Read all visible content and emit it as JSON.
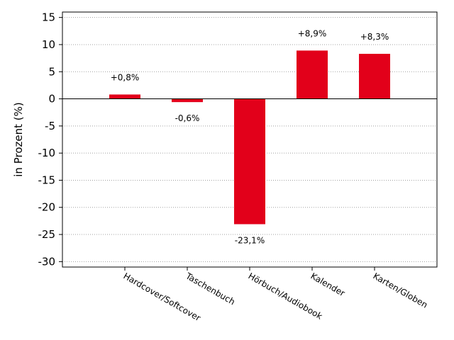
{
  "chart_data": {
    "type": "bar",
    "categories": [
      "Hardcover/Softcover",
      "Taschenbuch",
      "Hörbuch/Audiobook",
      "Kalender",
      "Karten/Globen"
    ],
    "values": [
      0.8,
      -0.6,
      -23.1,
      8.9,
      8.3
    ],
    "data_labels": [
      "+0,8%",
      "-0,6%",
      "-23,1%",
      "+8,9%",
      "+8,3%"
    ],
    "title": "",
    "xlabel": "",
    "ylabel": "in Prozent (%)",
    "ylim": [
      -31,
      16
    ],
    "yticks": [
      15,
      10,
      5,
      0,
      -5,
      -10,
      -15,
      -20,
      -25,
      -30
    ],
    "grid": true,
    "bar_color": "#e2001a"
  }
}
